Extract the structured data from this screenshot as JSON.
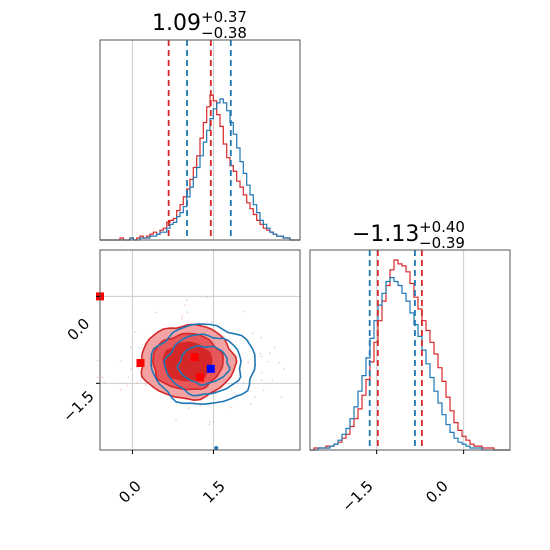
{
  "colors": {
    "series_a": "#d62728",
    "series_b": "#1f77b4",
    "grid": "#cccccc",
    "axis": "#555555"
  },
  "chart_data": {
    "type": "corner",
    "parameters": [
      {
        "median": "1.09",
        "upper": "+0.37",
        "lower": "−0.38",
        "range": [
          -0.6,
          3.1
        ],
        "quantiles_a": [
          0.67,
          1.45
        ],
        "quantiles_b": [
          1.01,
          1.82
        ]
      },
      {
        "median": "−1.13",
        "upper": "+0.40",
        "lower": "−0.39",
        "range": [
          -2.65,
          0.8
        ],
        "quantiles_a": [
          -1.48,
          -0.72
        ],
        "quantiles_b": [
          -1.62,
          -0.84
        ]
      }
    ],
    "x_ticks": [
      "0.0",
      "1.5"
    ],
    "x_ticks_2": [
      "−1.5",
      "0.0"
    ],
    "y_ticks": [
      "0.0",
      "−1.5"
    ],
    "markers": [
      {
        "series": "a",
        "x": 1.15,
        "y": -1.05
      },
      {
        "series": "a",
        "x": 1.25,
        "y": -1.4
      },
      {
        "series": "b",
        "x": 1.45,
        "y": -1.25
      },
      {
        "series": "a",
        "x": 0.15,
        "y": -1.15
      },
      {
        "series": "a",
        "x": -0.6,
        "y": 0.0
      }
    ],
    "hist_a_1": [
      0,
      0,
      0,
      0,
      0,
      0,
      1,
      0,
      0,
      1,
      0,
      1,
      2,
      1,
      2,
      3,
      4,
      3,
      5,
      6,
      9,
      10,
      11,
      15,
      18,
      22,
      26,
      31,
      37,
      43,
      52,
      60,
      68,
      74,
      71,
      64,
      58,
      49,
      42,
      38,
      35,
      30,
      27,
      23,
      19,
      16,
      13,
      10,
      8,
      6,
      5,
      4,
      3,
      2,
      2,
      1,
      1,
      0,
      0,
      0
    ],
    "hist_b_1": [
      0,
      0,
      0,
      0,
      0,
      0,
      0,
      0,
      0,
      1,
      0,
      0,
      1,
      1,
      1,
      2,
      2,
      3,
      4,
      4,
      6,
      8,
      9,
      12,
      14,
      17,
      22,
      27,
      32,
      37,
      43,
      50,
      56,
      62,
      67,
      70,
      72,
      70,
      66,
      60,
      54,
      47,
      40,
      34,
      28,
      23,
      18,
      14,
      10,
      8,
      6,
      4,
      3,
      2,
      2,
      1,
      1,
      0,
      0,
      0
    ],
    "hist_a_2": [
      0,
      1,
      1,
      1,
      2,
      2,
      3,
      4,
      6,
      8,
      12,
      16,
      21,
      28,
      36,
      45,
      55,
      66,
      76,
      84,
      92,
      97,
      95,
      94,
      91,
      85,
      78,
      72,
      66,
      61,
      55,
      49,
      42,
      35,
      27,
      20,
      14,
      10,
      7,
      5,
      3,
      2,
      2,
      1,
      1,
      1,
      0,
      0,
      0,
      0
    ],
    "hist_b_2": [
      0,
      0,
      1,
      1,
      1,
      2,
      3,
      5,
      8,
      11,
      16,
      22,
      30,
      38,
      47,
      57,
      66,
      74,
      80,
      86,
      88,
      86,
      84,
      80,
      76,
      70,
      64,
      58,
      51,
      44,
      37,
      30,
      24,
      18,
      13,
      9,
      6,
      4,
      3,
      2,
      1,
      1,
      1,
      0,
      0,
      0,
      0,
      0,
      0,
      0
    ]
  }
}
